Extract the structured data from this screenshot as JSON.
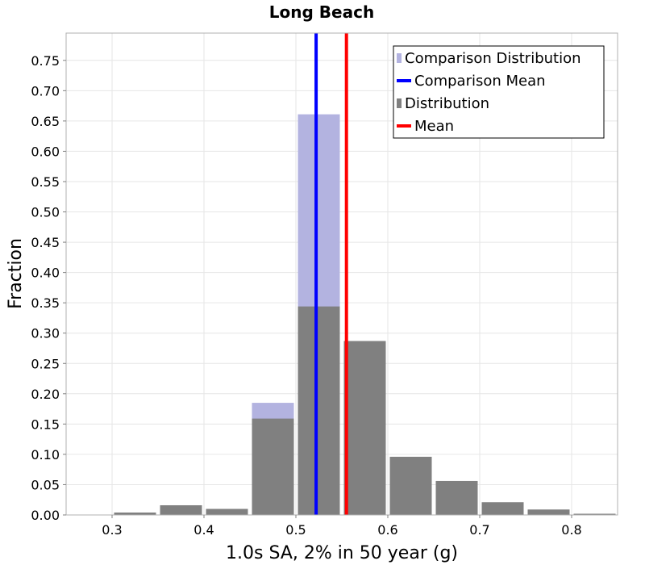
{
  "chart_data": {
    "type": "bar",
    "title": "Long Beach",
    "xlabel": "1.0s SA, 2% in 50 year (g)",
    "ylabel": "Fraction",
    "xlim": [
      0.25,
      0.85
    ],
    "ylim": [
      0.0,
      0.795
    ],
    "x_ticks": [
      0.3,
      0.4,
      0.5,
      0.6,
      0.7,
      0.8
    ],
    "x_tick_labels": [
      "0.3",
      "0.4",
      "0.5",
      "0.6",
      "0.7",
      "0.8"
    ],
    "y_ticks": [
      0.0,
      0.05,
      0.1,
      0.15,
      0.2,
      0.25,
      0.3,
      0.35,
      0.4,
      0.45,
      0.5,
      0.55,
      0.6,
      0.65,
      0.7,
      0.75
    ],
    "y_tick_labels": [
      "0.00",
      "0.05",
      "0.10",
      "0.15",
      "0.20",
      "0.25",
      "0.30",
      "0.35",
      "0.40",
      "0.45",
      "0.50",
      "0.55",
      "0.60",
      "0.65",
      "0.70",
      "0.75"
    ],
    "grid": true,
    "legend_position": "top-right",
    "bin_width": 0.05,
    "series": [
      {
        "name": "Comparison Distribution",
        "kind": "histogram",
        "color": "#b3b3e0",
        "bins": [
          {
            "x": 0.475,
            "value": 0.185
          },
          {
            "x": 0.525,
            "value": 0.661
          }
        ]
      },
      {
        "name": "Comparison Mean",
        "kind": "vline",
        "color": "#0000ff",
        "x": 0.522
      },
      {
        "name": "Distribution",
        "kind": "histogram",
        "color": "#808080",
        "bins": [
          {
            "x": 0.325,
            "value": 0.004
          },
          {
            "x": 0.375,
            "value": 0.016
          },
          {
            "x": 0.425,
            "value": 0.01
          },
          {
            "x": 0.475,
            "value": 0.159
          },
          {
            "x": 0.525,
            "value": 0.344
          },
          {
            "x": 0.575,
            "value": 0.287
          },
          {
            "x": 0.625,
            "value": 0.096
          },
          {
            "x": 0.675,
            "value": 0.056
          },
          {
            "x": 0.725,
            "value": 0.021
          },
          {
            "x": 0.775,
            "value": 0.009
          },
          {
            "x": 0.825,
            "value": 0.002
          }
        ]
      },
      {
        "name": "Mean",
        "kind": "vline",
        "color": "#ff0000",
        "x": 0.555
      }
    ]
  }
}
